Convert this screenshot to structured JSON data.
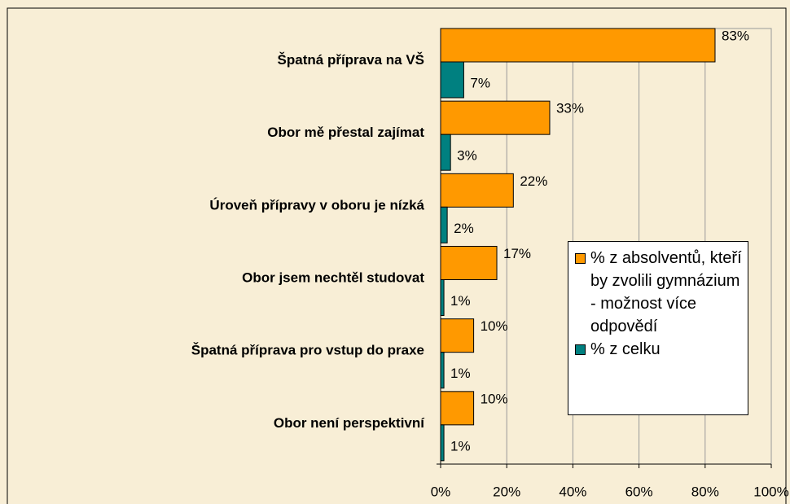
{
  "chart_data": {
    "type": "bar",
    "orientation": "horizontal",
    "categories": [
      "Špatná příprava na VŠ",
      "Obor mě přestal zajímat",
      "Úroveň přípravy v oboru je nízká",
      "Obor jsem  nechtěl studovat",
      "Špatná příprava pro vstup do praxe",
      "Obor není perspektivní"
    ],
    "series": [
      {
        "name": "% z absolventů, kteří by zvolili gymnázium - možnost více odpovědí",
        "color": "#ff9900",
        "values": [
          83,
          33,
          22,
          17,
          10,
          10
        ],
        "value_labels": [
          "83%",
          "33%",
          "22%",
          "17%",
          "10%",
          "10%"
        ]
      },
      {
        "name": "% z celku",
        "color": "#008080",
        "values": [
          7,
          3,
          2,
          1,
          1,
          1
        ],
        "value_labels": [
          "7%",
          "3%",
          "2%",
          "1%",
          "1%",
          "1%"
        ]
      }
    ],
    "xlim": [
      0,
      100
    ],
    "xticks": [
      {
        "value": 0,
        "label": "0%"
      },
      {
        "value": 20,
        "label": "20%"
      },
      {
        "value": 40,
        "label": "40%"
      },
      {
        "value": 60,
        "label": "60%"
      },
      {
        "value": 80,
        "label": "80%"
      },
      {
        "value": 100,
        "label": "100%"
      }
    ],
    "grid": true,
    "legend": "right"
  }
}
